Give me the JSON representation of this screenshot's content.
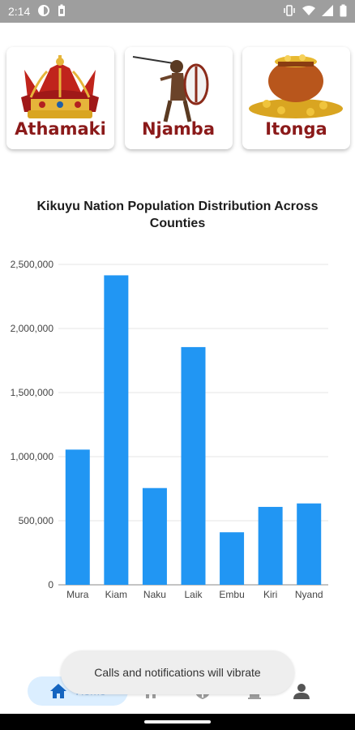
{
  "status_bar": {
    "time": "2:14",
    "icons": [
      "data-saver-icon",
      "battery-saver-icon",
      "vibrate-icon",
      "wifi-icon",
      "signal-icon",
      "battery-icon"
    ]
  },
  "cards": [
    {
      "label": "Athamaki",
      "icon": "crown-image"
    },
    {
      "label": "Njamba",
      "icon": "warrior-image"
    },
    {
      "label": "Itonga",
      "icon": "gold-pot-image"
    }
  ],
  "colors": {
    "bar": "#2196f3",
    "card_text": "#8b1a1a",
    "nav_active": "#dbeeff"
  },
  "chart_title": "Kikuyu Nation Population Distribution Across Counties",
  "chart_data": {
    "type": "bar",
    "title": "Kikuyu Nation Population Distribution Across Counties",
    "categories": [
      "Mura",
      "Kiam",
      "Naku",
      "Laik",
      "Embu",
      "Kiri",
      "Nyand"
    ],
    "values": [
      1055000,
      2415000,
      755000,
      1855000,
      410000,
      608000,
      635000
    ],
    "ylim": [
      0,
      2500000
    ],
    "yticks": [
      0,
      500000,
      1000000,
      1500000,
      2000000,
      2500000
    ],
    "ytick_labels": [
      "0",
      "500,000",
      "1,000,000",
      "1,500,000",
      "2,000,000",
      "2,500,000"
    ],
    "grid": true
  },
  "toast": {
    "text": "Calls and notifications will vibrate"
  },
  "bottom_nav": {
    "items": [
      {
        "label": "Home",
        "icon": "home-icon",
        "active": true
      },
      {
        "icon": "house-icon"
      },
      {
        "icon": "shield-icon"
      },
      {
        "icon": "door-icon"
      },
      {
        "icon": "person-icon"
      }
    ]
  }
}
